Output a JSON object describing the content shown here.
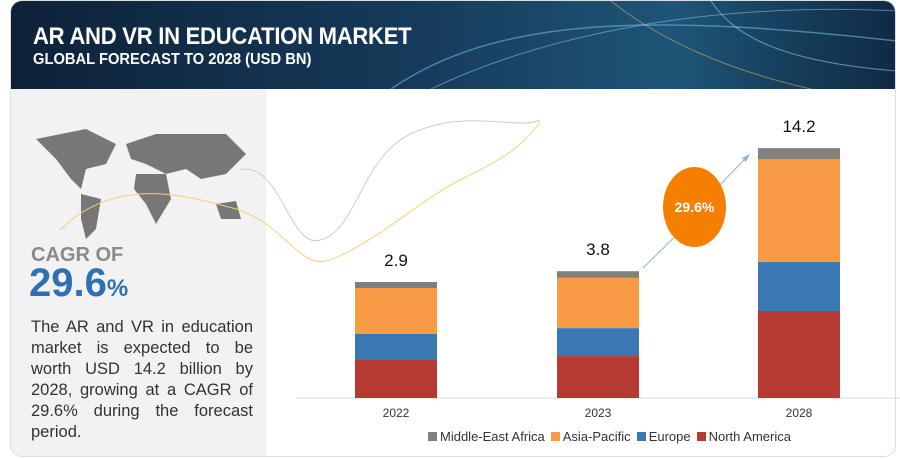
{
  "header": {
    "title": "AR AND VR IN EDUCATION MARKET",
    "subtitle": "GLOBAL FORECAST TO 2028 (USD BN)"
  },
  "summary": {
    "cagr_label": "CAGR OF",
    "cagr_value": "29.6",
    "cagr_unit": "%",
    "description": "The AR and VR in education market is expected to be worth USD 14.2 billion by 2028, growing at a CAGR of 29.6% during the forecast period."
  },
  "growth_bubble": "29.6%",
  "chart_data": {
    "type": "bar",
    "stacked": true,
    "categories": [
      "2022",
      "2023",
      "2028"
    ],
    "totals": [
      "2.9",
      "3.8",
      "14.2"
    ],
    "series": [
      {
        "name": "North America",
        "color": "#b63a32",
        "values": [
          0.95,
          1.26,
          4.94
        ]
      },
      {
        "name": "Europe",
        "color": "#3a78b5",
        "values": [
          0.65,
          0.84,
          2.78
        ]
      },
      {
        "name": "Asia-Pacific",
        "color": "#f99a45",
        "values": [
          1.15,
          1.51,
          5.85
        ]
      },
      {
        "name": "Middle-East Africa",
        "color": "#808080",
        "values": [
          0.15,
          0.2,
          0.62
        ]
      }
    ],
    "legend_order": [
      "Middle-East Africa",
      "Asia-Pacific",
      "Europe",
      "North America"
    ],
    "legend_position": "bottom",
    "grid": false
  }
}
